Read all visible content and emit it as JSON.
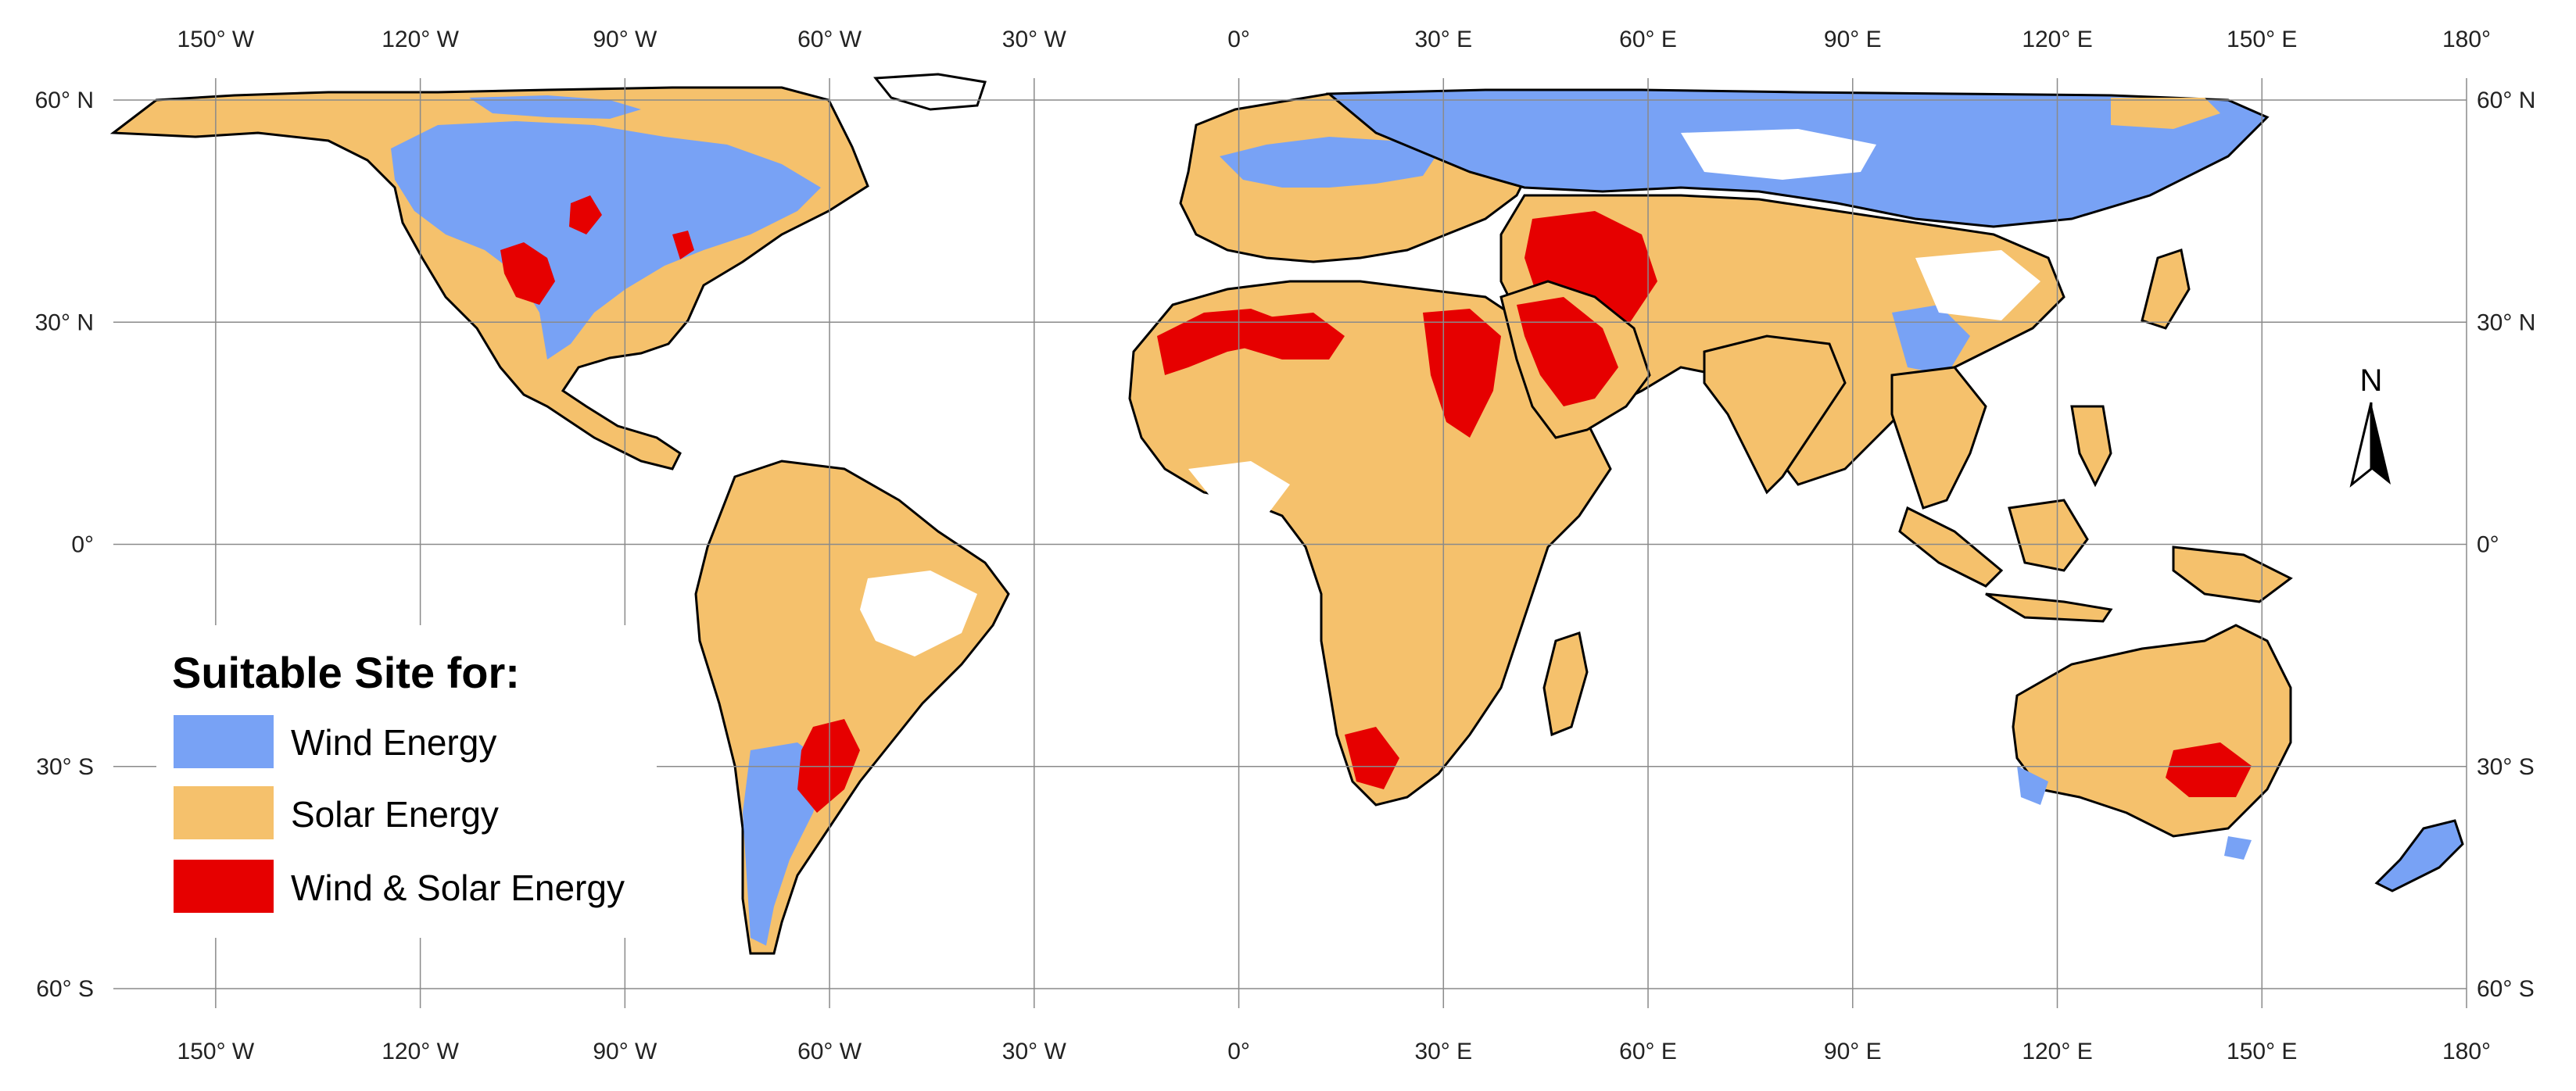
{
  "map": {
    "lon_ticks": [
      {
        "lon": -150,
        "label": "150° W"
      },
      {
        "lon": -120,
        "label": "120° W"
      },
      {
        "lon": -90,
        "label": "90° W"
      },
      {
        "lon": -60,
        "label": "60° W"
      },
      {
        "lon": -30,
        "label": "30° W"
      },
      {
        "lon": 0,
        "label": "0°"
      },
      {
        "lon": 30,
        "label": "30° E"
      },
      {
        "lon": 60,
        "label": "60° E"
      },
      {
        "lon": 90,
        "label": "90° E"
      },
      {
        "lon": 120,
        "label": "120° E"
      },
      {
        "lon": 150,
        "label": "150° E"
      },
      {
        "lon": 180,
        "label": "180°"
      }
    ],
    "lat_ticks": [
      {
        "lat": 60,
        "label": "60° N"
      },
      {
        "lat": 30,
        "label": "30° N"
      },
      {
        "lat": 0,
        "label": "0°"
      },
      {
        "lat": -30,
        "label": "30° S"
      },
      {
        "lat": -60,
        "label": "60° S"
      }
    ],
    "north_arrow_label": "N"
  },
  "legend": {
    "title": "Suitable Site for:",
    "items": [
      {
        "label": "Wind Energy",
        "color": "#78a2f5"
      },
      {
        "label": "Solar Energy",
        "color": "#f5c16c"
      },
      {
        "label": "Wind & Solar Energy",
        "color": "#e60000"
      }
    ]
  },
  "colors": {
    "wind": "#78a2f5",
    "solar": "#f5c16c",
    "wind_solar": "#e60000",
    "coast": "#000000",
    "grid": "#8a8a8a"
  }
}
